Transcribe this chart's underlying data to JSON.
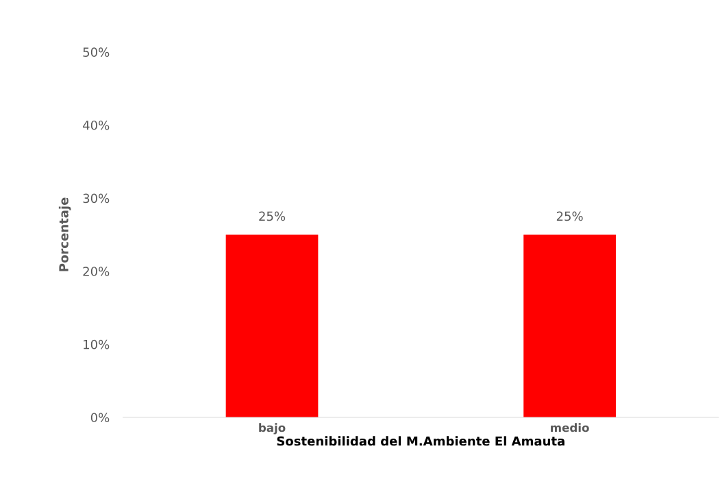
{
  "chart_data": {
    "type": "bar",
    "xlabel": "Sostenibilidad del M.Ambiente El Amauta",
    "ylabel": "Porcentaje",
    "categories": [
      "bajo",
      "medio"
    ],
    "values": [
      25,
      25
    ],
    "color": "#ff0000",
    "value_labels": [
      "25%",
      "25%"
    ],
    "ylim": [
      0,
      50
    ],
    "yticks": [
      {
        "value": 0,
        "label": "0%"
      },
      {
        "value": 10,
        "label": "10%"
      },
      {
        "value": 20,
        "label": "20%"
      },
      {
        "value": 30,
        "label": "30%"
      },
      {
        "value": 40,
        "label": "40%"
      },
      {
        "value": 50,
        "label": "50%"
      }
    ],
    "grid": false,
    "legend": false
  }
}
